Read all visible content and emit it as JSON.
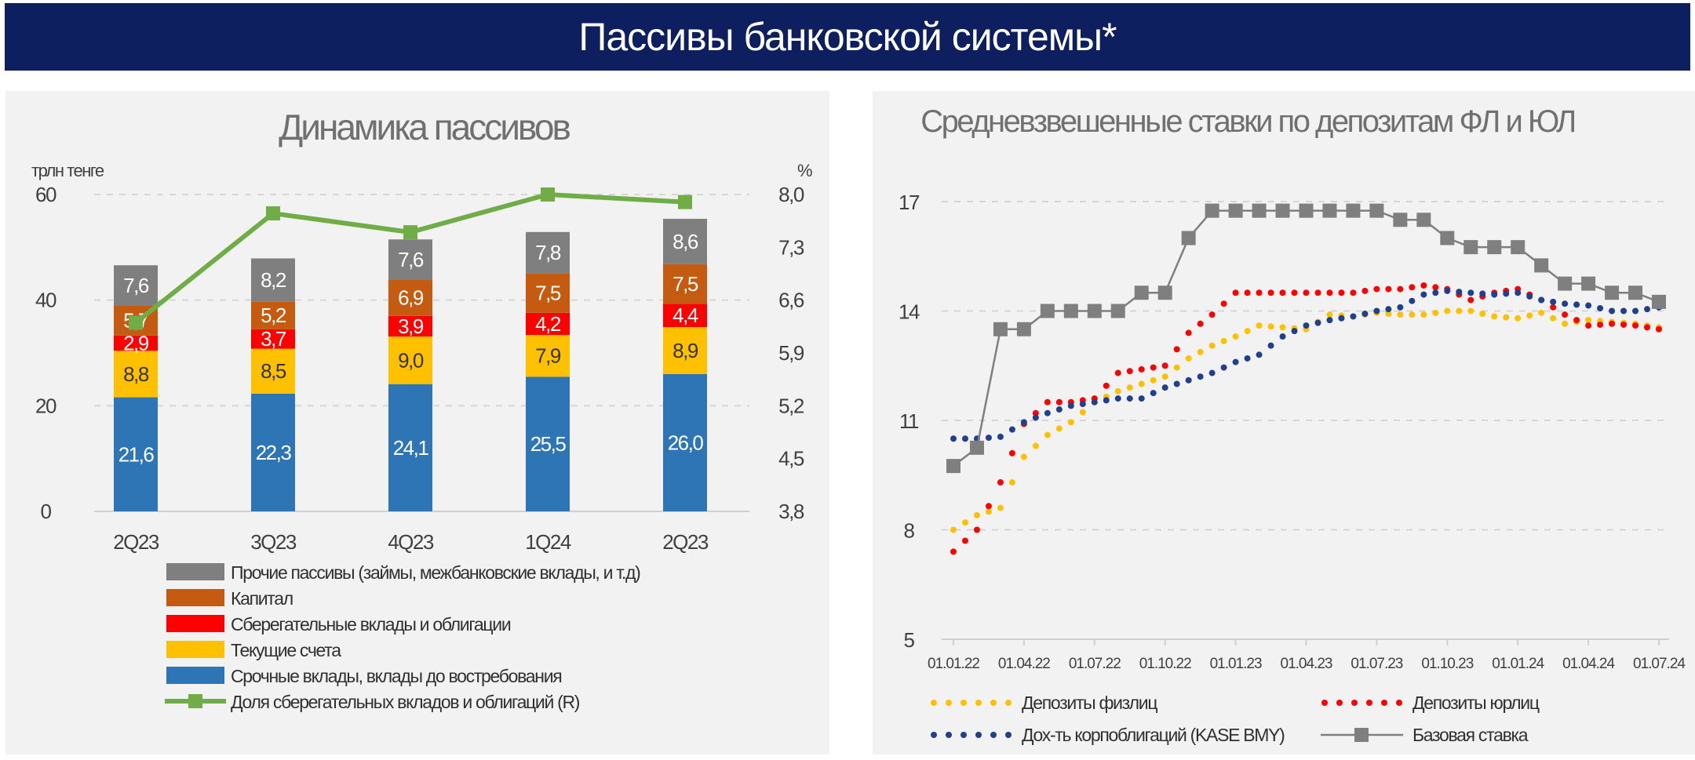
{
  "header": {
    "title": "Пассивы банковской системы*",
    "background": "#0d1f5e"
  },
  "chart_data": [
    {
      "type": "bar",
      "stacked": true,
      "title": "Динамика пассивов",
      "ylabel": "трлн тенге",
      "y2label": "%",
      "ylim": [
        0,
        60
      ],
      "yticks": [
        "0",
        "20",
        "40",
        "60"
      ],
      "y2lim": [
        3.8,
        8.0
      ],
      "y2ticks": [
        "3,8",
        "4,5",
        "5,2",
        "5,9",
        "6,6",
        "7,3",
        "8,0"
      ],
      "grid": true,
      "legend_placement": "bottom",
      "categories": [
        "2Q23",
        "3Q23",
        "4Q23",
        "1Q24",
        "2Q23"
      ],
      "series": [
        {
          "name": "Срочные вклады, вклады до востребования",
          "color": "#2e75b6",
          "label_color": "#ffffff",
          "values": [
            21.6,
            22.3,
            24.1,
            25.5,
            26.0
          ],
          "labels": [
            "21,6",
            "22,3",
            "24,1",
            "25,5",
            "26,0"
          ]
        },
        {
          "name": "Текущие счета",
          "color": "#ffc000",
          "label_color": "#333333",
          "values": [
            8.8,
            8.5,
            9.0,
            7.9,
            8.9
          ],
          "labels": [
            "8,8",
            "8,5",
            "9,0",
            "7,9",
            "8,9"
          ]
        },
        {
          "name": "Сберегательные вклады и облигации",
          "color": "#ff0000",
          "label_color": "#ffffff",
          "values": [
            2.9,
            3.7,
            3.9,
            4.2,
            4.4
          ],
          "labels": [
            "2,9",
            "3,7",
            "3,9",
            "4,2",
            "4,4"
          ]
        },
        {
          "name": "Капитал",
          "color": "#c55a11",
          "label_color": "#ffffff",
          "values": [
            5.7,
            5.2,
            6.9,
            7.5,
            7.5
          ],
          "labels": [
            "5,7",
            "5,2",
            "6,9",
            "7,5",
            "7,5"
          ]
        },
        {
          "name": "Прочие пассивы (займы, межбанковские вклады, и т.д)",
          "color": "#7f7f7f",
          "label_color": "#ffffff",
          "values": [
            7.6,
            8.2,
            7.6,
            7.8,
            8.6
          ],
          "labels": [
            "7,6",
            "8,2",
            "7,6",
            "7,8",
            "8,6"
          ]
        }
      ],
      "line_series": {
        "name": "Доля сберегательных вкладов и облигаций (R)",
        "color": "#70ad47",
        "axis": "right",
        "values": [
          6.3,
          7.75,
          7.5,
          8.0,
          7.9
        ]
      },
      "legend_order": [
        4,
        3,
        2,
        1,
        0
      ]
    },
    {
      "type": "line",
      "title": "Средневзвешенные ставки по депозитам ФЛ и ЮЛ",
      "ylim": [
        5,
        17
      ],
      "yticks": [
        "5",
        "8",
        "11",
        "14",
        "17"
      ],
      "grid": true,
      "legend_placement": "bottom",
      "x_start": "01.01.22",
      "x_frequency": "monthly",
      "xticks": [
        "01.01.22",
        "01.04.22",
        "01.07.22",
        "01.10.22",
        "01.01.23",
        "01.04.23",
        "01.07.23",
        "01.10.23",
        "01.01.24",
        "01.04.24",
        "01.07.24"
      ],
      "series": [
        {
          "name": "Депозиты физлиц",
          "color": "#ffc000",
          "style": "dotted",
          "values": [
            8.0,
            8.4,
            8.6,
            10.0,
            10.6,
            10.95,
            11.5,
            11.8,
            12.0,
            12.2,
            12.7,
            13.05,
            13.3,
            13.6,
            13.55,
            13.5,
            13.9,
            13.85,
            13.95,
            13.9,
            13.9,
            14.0,
            14.0,
            13.85,
            13.8,
            13.95,
            13.65,
            13.75,
            13.7,
            13.65,
            13.55
          ]
        },
        {
          "name": "Депозиты юрлиц",
          "color": "#ff0000",
          "style": "dotted",
          "values": [
            7.4,
            8.0,
            9.3,
            10.9,
            11.5,
            11.5,
            11.6,
            12.3,
            12.4,
            12.5,
            13.4,
            13.9,
            14.5,
            14.5,
            14.5,
            14.5,
            14.5,
            14.5,
            14.6,
            14.6,
            14.7,
            14.6,
            14.3,
            14.5,
            14.6,
            14.3,
            13.9,
            13.6,
            13.65,
            13.6,
            13.5
          ]
        },
        {
          "name": "Дох-ть корпоблигаций (KASE BMY)",
          "color": "#1f3f8f",
          "style": "dotted",
          "values": [
            10.5,
            10.5,
            10.55,
            10.95,
            11.2,
            11.4,
            11.5,
            11.6,
            11.6,
            11.9,
            12.1,
            12.3,
            12.6,
            12.8,
            13.3,
            13.6,
            13.75,
            13.85,
            14.0,
            14.1,
            14.45,
            14.55,
            14.5,
            14.45,
            14.5,
            14.3,
            14.2,
            14.15,
            14.0,
            14.0,
            14.1
          ]
        },
        {
          "name": "Базовая ставка",
          "color": "#7f7f7f",
          "style": "line-square",
          "values": [
            9.75,
            10.25,
            13.5,
            13.5,
            14.0,
            14.0,
            14.0,
            14.0,
            14.5,
            14.5,
            16.0,
            16.75,
            16.75,
            16.75,
            16.75,
            16.75,
            16.75,
            16.75,
            16.75,
            16.5,
            16.5,
            16.0,
            15.75,
            15.75,
            15.75,
            15.25,
            14.75,
            14.75,
            14.5,
            14.5,
            14.25
          ]
        }
      ]
    }
  ]
}
